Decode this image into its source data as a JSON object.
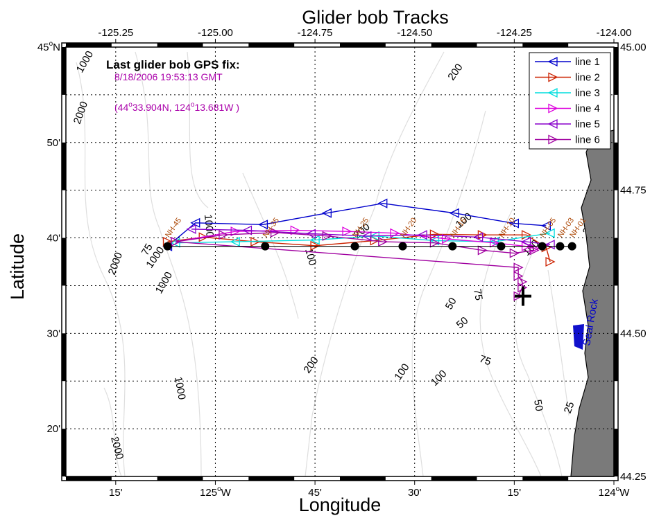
{
  "chart_data": {
    "type": "line",
    "title": "Glider bob Tracks",
    "xlabel": "Longitude",
    "ylabel": "Latitude",
    "xlim": [
      -125.375,
      -124.0
    ],
    "ylim": [
      44.25,
      45.0
    ],
    "grid": true,
    "legend_position": "top-right",
    "top_ticks": {
      "values": [
        -125.25,
        -125.0,
        -124.75,
        -124.5,
        -124.25,
        -124.0
      ],
      "labels": [
        "-125.25",
        "-125.00",
        "-124.75",
        "-124.50",
        "-124.25",
        "-124.00"
      ]
    },
    "right_ticks": {
      "values": [
        45.0,
        44.75,
        44.5,
        44.25
      ],
      "labels": [
        "45.00",
        "44.75",
        "44.50",
        "44.25"
      ]
    },
    "bottom_ticks": [
      {
        "value": -125.25,
        "deg": "",
        "label": "15'"
      },
      {
        "value": -125.0,
        "deg": "125",
        "label": "W"
      },
      {
        "value": -124.75,
        "deg": "",
        "label": "45'"
      },
      {
        "value": -124.5,
        "deg": "",
        "label": "30'"
      },
      {
        "value": -124.25,
        "deg": "",
        "label": "15'"
      },
      {
        "value": -124.0,
        "deg": "124",
        "label": "W"
      }
    ],
    "left_ticks": [
      {
        "value": 45.0,
        "deg": "45",
        "label": "N"
      },
      {
        "value": 44.8333,
        "deg": "",
        "label": "50'"
      },
      {
        "value": 44.6667,
        "deg": "",
        "label": "40'"
      },
      {
        "value": 44.5,
        "deg": "",
        "label": "30'"
      },
      {
        "value": 44.3333,
        "deg": "",
        "label": "20'"
      }
    ],
    "annotation": {
      "heading": "Last glider bob GPS fix:",
      "time": "8/18/2006 19:53:13 GMT",
      "position_lat_deg": "44",
      "position_lat_min": "33.904N, 124",
      "position_lon_min": "13.681W )",
      "position_prefix": "(",
      "last_fix": {
        "lon": -124.228,
        "lat": 44.565
      }
    },
    "place_label": "Seal Rock",
    "stations": {
      "labels": [
        "NH-45",
        "NH-35",
        "NH-25",
        "NH-20",
        "NH-15",
        "NH-10",
        "NH-05",
        "NH-03",
        "NH-01"
      ],
      "points": [
        {
          "lon": -125.12,
          "lat": 44.652
        },
        {
          "lon": -124.875,
          "lat": 44.652
        },
        {
          "lon": -124.65,
          "lat": 44.652
        },
        {
          "lon": -124.53,
          "lat": 44.652
        },
        {
          "lon": -124.405,
          "lat": 44.652
        },
        {
          "lon": -124.283,
          "lat": 44.652
        },
        {
          "lon": -124.18,
          "lat": 44.652
        },
        {
          "lon": -124.135,
          "lat": 44.652
        },
        {
          "lon": -124.105,
          "lat": 44.652
        }
      ]
    },
    "contour_labels": [
      "2000",
      "1000",
      "200",
      "1000",
      "2000",
      "1000",
      "1000",
      "1000",
      "200",
      "100",
      "100",
      "75",
      "50",
      "50",
      "75",
      "200",
      "100",
      "100",
      "50",
      "25",
      "2000",
      "25",
      "100",
      "75"
    ],
    "series": [
      {
        "name": "line 1",
        "color": "#0000cc",
        "marker": "triangle-left",
        "x": [
          -124.17,
          -124.25,
          -124.4,
          -124.58,
          -124.72,
          -124.88,
          -125.05,
          -125.12
        ],
        "y": [
          44.688,
          44.692,
          44.71,
          44.727,
          44.71,
          44.69,
          44.693,
          44.652
        ]
      },
      {
        "name": "line 2",
        "color": "#cc2200",
        "marker": "triangle-right",
        "x": [
          -125.12,
          -125.03,
          -124.9,
          -124.75,
          -124.6,
          -124.45,
          -124.33,
          -124.22,
          -124.17,
          -124.16
        ],
        "y": [
          44.66,
          44.668,
          44.66,
          44.653,
          44.662,
          44.673,
          44.672,
          44.672,
          44.65,
          44.625
        ]
      },
      {
        "name": "line 3",
        "color": "#00dddd",
        "marker": "triangle-left",
        "x": [
          -124.16,
          -124.3,
          -124.45,
          -124.6,
          -124.75,
          -124.95,
          -125.1
        ],
        "y": [
          44.675,
          44.66,
          44.662,
          44.67,
          44.663,
          44.66,
          44.658
        ]
      },
      {
        "name": "line 4",
        "color": "#dd00dd",
        "marker": "triangle-right",
        "x": [
          -125.1,
          -124.95,
          -124.8,
          -124.67,
          -124.55,
          -124.42,
          -124.3,
          -124.22,
          -124.2
        ],
        "y": [
          44.66,
          44.678,
          44.68,
          44.678,
          44.675,
          44.665,
          44.658,
          44.652,
          44.648
        ]
      },
      {
        "name": "line 5",
        "color": "#8800cc",
        "marker": "triangle-left",
        "x": [
          -124.16,
          -124.22,
          -124.34,
          -124.48,
          -124.62,
          -124.76,
          -124.92,
          -125.06
        ],
        "y": [
          44.655,
          44.66,
          44.668,
          44.672,
          44.67,
          44.674,
          44.68,
          44.682
        ]
      },
      {
        "name": "line 6",
        "color": "#a000a0",
        "marker": "triangle-right",
        "x": [
          -124.2,
          -124.25,
          -124.33,
          -124.45,
          -124.58,
          -124.72,
          -124.85,
          -124.98,
          -125.1,
          -124.24,
          -124.24,
          -124.23,
          -124.23,
          -124.24
        ],
        "y": [
          44.645,
          44.64,
          44.645,
          44.658,
          44.66,
          44.67,
          44.676,
          44.672,
          44.66,
          44.615,
          44.6,
          44.59,
          44.58,
          44.565
        ]
      }
    ]
  }
}
